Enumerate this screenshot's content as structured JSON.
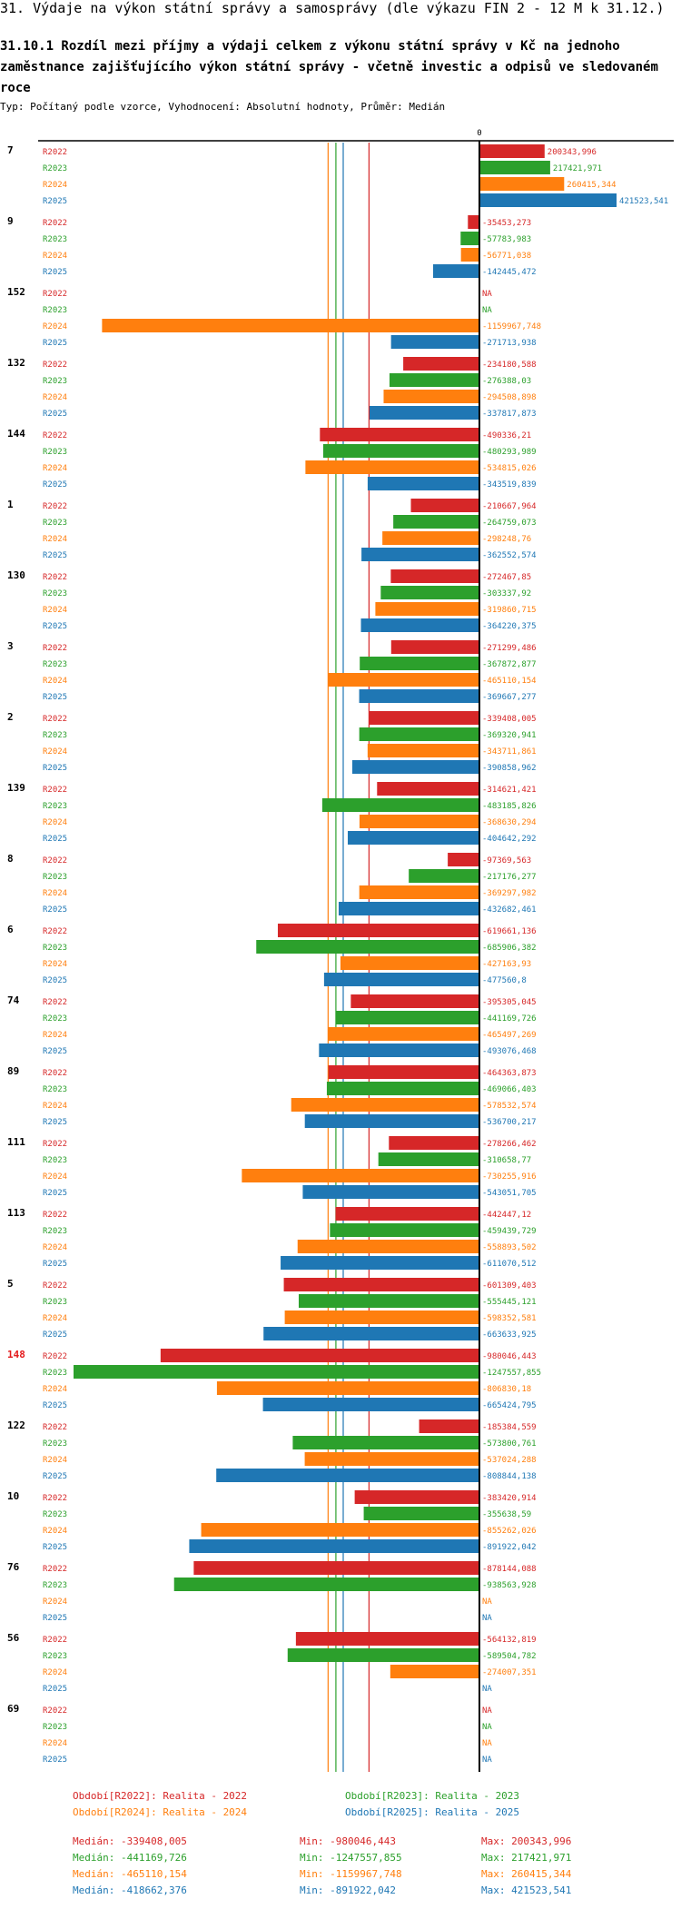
{
  "page": {
    "title": "31. Výdaje na výkon státní správy a samosprávy (dle výkazu FIN 2 - 12 M k 31.12.)",
    "subtitle": "31.10.1 Rozdíl mezi příjmy a výdaji celkem z výkonu státní správy v Kč na jednoho zaměstnance zajišťujícího výkon státní správy - včetně investic a odpisů ve sledovaném roce",
    "note": "Typ: Počítaný podle vzorce, Vyhodnocení: Absolutní hodnoty, Průměr: Medián"
  },
  "colors": {
    "R2022": "#d62728",
    "R2023": "#2ca02c",
    "R2024": "#ff7f0e",
    "R2025": "#1f77b4",
    "highlight": "#e41a1c"
  },
  "chart_data": {
    "type": "bar",
    "orientation": "horizontal",
    "zero_label": "0",
    "series_names": [
      "R2022",
      "R2023",
      "R2024",
      "R2025"
    ],
    "na_label": "NA",
    "xlim": [
      -1247557.855,
      421523.541
    ],
    "highlight_category": "148",
    "categories": [
      {
        "id": "7",
        "labels": [
          "200343,996",
          "217421,971",
          "260415,344",
          "421523,541"
        ],
        "values": [
          200343.996,
          217421.971,
          260415.344,
          421523.541
        ]
      },
      {
        "id": "9",
        "labels": [
          "-35453,273",
          "-57783,983",
          "-56771,038",
          "-142445,472"
        ],
        "values": [
          -35453.273,
          -57783.983,
          -56771.038,
          -142445.472
        ]
      },
      {
        "id": "152",
        "labels": [
          "NA",
          "NA",
          "-1159967,748",
          "-271713,938"
        ],
        "values": [
          null,
          null,
          -1159967.748,
          -271713.938
        ]
      },
      {
        "id": "132",
        "labels": [
          "-234180,588",
          "-276388,03",
          "-294508,898",
          "-337817,873"
        ],
        "values": [
          -234180.588,
          -276388.03,
          -294508.898,
          -337817.873
        ]
      },
      {
        "id": "144",
        "labels": [
          "-490336,21",
          "-480293,989",
          "-534815,026",
          "-343519,839"
        ],
        "values": [
          -490336.21,
          -480293.989,
          -534815.026,
          -343519.839
        ]
      },
      {
        "id": "1",
        "labels": [
          "-210667,964",
          "-264759,073",
          "-298248,76",
          "-362552,574"
        ],
        "values": [
          -210667.964,
          -264759.073,
          -298248.76,
          -362552.574
        ]
      },
      {
        "id": "130",
        "labels": [
          "-272467,85",
          "-303337,92",
          "-319860,715",
          "-364220,375"
        ],
        "values": [
          -272467.85,
          -303337.92,
          -319860.715,
          -364220.375
        ]
      },
      {
        "id": "3",
        "labels": [
          "-271299,486",
          "-367872,877",
          "-465110,154",
          "-369667,277"
        ],
        "values": [
          -271299.486,
          -367872.877,
          -465110.154,
          -369667.277
        ]
      },
      {
        "id": "2",
        "labels": [
          "-339408,005",
          "-369320,941",
          "-343711,861",
          "-390858,962"
        ],
        "values": [
          -339408.005,
          -369320.941,
          -343711.861,
          -390858.962
        ]
      },
      {
        "id": "139",
        "labels": [
          "-314621,421",
          "-483185,826",
          "-368630,294",
          "-404642,292"
        ],
        "values": [
          -314621.421,
          -483185.826,
          -368630.294,
          -404642.292
        ]
      },
      {
        "id": "8",
        "labels": [
          "-97369,563",
          "-217176,277",
          "-369297,982",
          "-432682,461"
        ],
        "values": [
          -97369.563,
          -217176.277,
          -369297.982,
          -432682.461
        ]
      },
      {
        "id": "6",
        "labels": [
          "-619661,136",
          "-685906,382",
          "-427163,93",
          "-477560,8"
        ],
        "values": [
          -619661.136,
          -685906.382,
          -427163.93,
          -477560.8
        ]
      },
      {
        "id": "74",
        "labels": [
          "-395305,045",
          "-441169,726",
          "-465497,269",
          "-493076,468"
        ],
        "values": [
          -395305.045,
          -441169.726,
          -465497.269,
          -493076.468
        ]
      },
      {
        "id": "89",
        "labels": [
          "-464363,873",
          "-469066,403",
          "-578532,574",
          "-536700,217"
        ],
        "values": [
          -464363.873,
          -469066.403,
          -578532.574,
          -536700.217
        ]
      },
      {
        "id": "111",
        "labels": [
          "-278266,462",
          "-310658,77",
          "-730255,916",
          "-543051,705"
        ],
        "values": [
          -278266.462,
          -310658.77,
          -730255.916,
          -543051.705
        ]
      },
      {
        "id": "113",
        "labels": [
          "-442447,12",
          "-459439,729",
          "-558893,502",
          "-611070,512"
        ],
        "values": [
          -442447.12,
          -459439.729,
          -558893.502,
          -611070.512
        ]
      },
      {
        "id": "5",
        "labels": [
          "-601309,403",
          "-555445,121",
          "-598352,581",
          "-663633,925"
        ],
        "values": [
          -601309.403,
          -555445.121,
          -598352.581,
          -663633.925
        ]
      },
      {
        "id": "148",
        "labels": [
          "-980046,443",
          "-1247557,855",
          "-806830,18",
          "-665424,795"
        ],
        "values": [
          -980046.443,
          -1247557.855,
          -806830.18,
          -665424.795
        ]
      },
      {
        "id": "122",
        "labels": [
          "-185384,559",
          "-573800,761",
          "-537024,288",
          "-808844,138"
        ],
        "values": [
          -185384.559,
          -573800.761,
          -537024.288,
          -808844.138
        ]
      },
      {
        "id": "10",
        "labels": [
          "-383420,914",
          "-355638,59",
          "-855262,026",
          "-891922,042"
        ],
        "values": [
          -383420.914,
          -355638.59,
          -855262.026,
          -891922.042
        ]
      },
      {
        "id": "76",
        "labels": [
          "-878144,088",
          "-938563,928",
          "NA",
          "NA"
        ],
        "values": [
          -878144.088,
          -938563.928,
          null,
          null
        ]
      },
      {
        "id": "56",
        "labels": [
          "-564132,819",
          "-589504,782",
          "-274007,351",
          "NA"
        ],
        "values": [
          -564132.819,
          -589504.782,
          -274007.351,
          null
        ]
      },
      {
        "id": "69",
        "labels": [
          "NA",
          "NA",
          "NA",
          "NA"
        ],
        "values": [
          null,
          null,
          null,
          null
        ]
      }
    ],
    "medians": [
      -339408.005,
      -441169.726,
      -465110.154,
      -418662.376
    ]
  },
  "legend": {
    "periods": [
      {
        "series": "R2022",
        "text": "Období[R2022]: Realita - 2022"
      },
      {
        "series": "R2023",
        "text": "Období[R2023]: Realita - 2023"
      },
      {
        "series": "R2024",
        "text": "Období[R2024]: Realita - 2024"
      },
      {
        "series": "R2025",
        "text": "Období[R2025]: Realita - 2025"
      }
    ],
    "stats": [
      {
        "series": "R2022",
        "median": "Medián: -339408,005",
        "min": "Min: -980046,443",
        "max": "Max: 200343,996"
      },
      {
        "series": "R2023",
        "median": "Medián: -441169,726",
        "min": "Min: -1247557,855",
        "max": "Max: 217421,971"
      },
      {
        "series": "R2024",
        "median": "Medián: -465110,154",
        "min": "Min: -1159967,748",
        "max": "Max: 260415,344"
      },
      {
        "series": "R2025",
        "median": "Medián: -418662,376",
        "min": "Min: -891922,042",
        "max": "Max: 421523,541"
      }
    ]
  }
}
